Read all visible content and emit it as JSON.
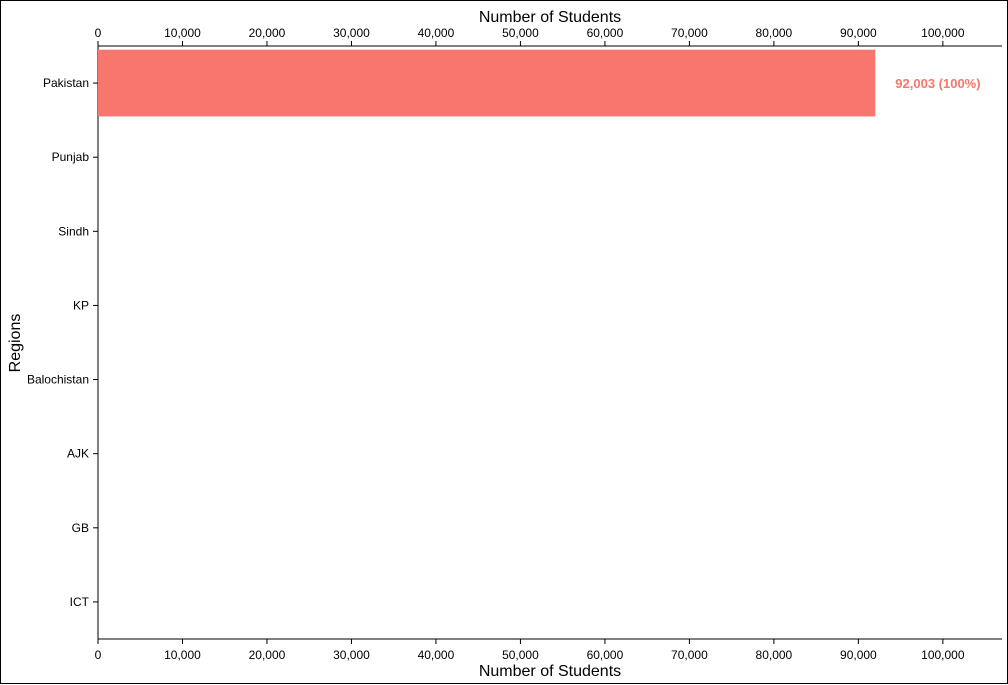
{
  "chart_data": {
    "type": "bar",
    "orientation": "horizontal",
    "categories": [
      "Pakistan",
      "Punjab",
      "Sindh",
      "KP",
      "Balochistan",
      "AJK",
      "GB",
      "ICT"
    ],
    "values": [
      92003,
      null,
      null,
      null,
      null,
      null,
      null,
      null
    ],
    "data_labels": [
      "92,003 (100%)",
      "",
      "",
      "",
      "",
      "",
      "",
      ""
    ],
    "xlabel": "Number of Students",
    "xlabel_top": "Number of Students",
    "ylabel": "Regions",
    "xlim": [
      0,
      107000
    ],
    "x_ticks": [
      0,
      10000,
      20000,
      30000,
      40000,
      50000,
      60000,
      70000,
      80000,
      90000,
      100000
    ],
    "x_tick_labels": [
      "0",
      "10,000",
      "20,000",
      "30,000",
      "40,000",
      "50,000",
      "60,000",
      "70,000",
      "80,000",
      "90,000",
      "100,000"
    ],
    "bar_color": "#F8766D",
    "grid": false,
    "legend": "none"
  }
}
